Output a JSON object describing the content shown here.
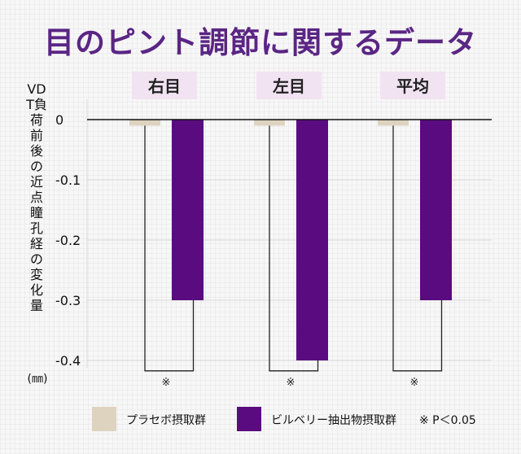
{
  "title": "目のピント調節に関するデータ",
  "ylabel": "VDT負荷前後の近点瞳孔経の変化量",
  "ylabel_unit": "(㎜)",
  "legend": {
    "placebo": "プラセボ摂取群",
    "bilberry": "ビルベリー抽出物摂取群",
    "note": "※ P＜0.05"
  },
  "colors": {
    "placebo": "#ddd3bf",
    "bilberry": "#5a0b80",
    "title": "#5a2584",
    "category_bg": "#f1e3f1"
  },
  "chart_data": {
    "type": "bar",
    "categories": [
      "右目",
      "左目",
      "平均"
    ],
    "series": [
      {
        "name": "プラセボ摂取群",
        "values": [
          -0.01,
          -0.01,
          -0.01
        ]
      },
      {
        "name": "ビルベリー抽出物摂取群",
        "values": [
          -0.3,
          -0.4,
          -0.3
        ]
      }
    ],
    "yticks": [
      0,
      -0.1,
      -0.2,
      -0.3,
      -0.4
    ],
    "ytick_labels": [
      "0",
      "-0.1",
      "-0.2",
      "-0.3",
      "-0.4"
    ],
    "ylim": [
      -0.42,
      0
    ],
    "significance_mark": "※",
    "significance": [
      true,
      true,
      true
    ],
    "grid": true,
    "legend_position": "bottom"
  }
}
